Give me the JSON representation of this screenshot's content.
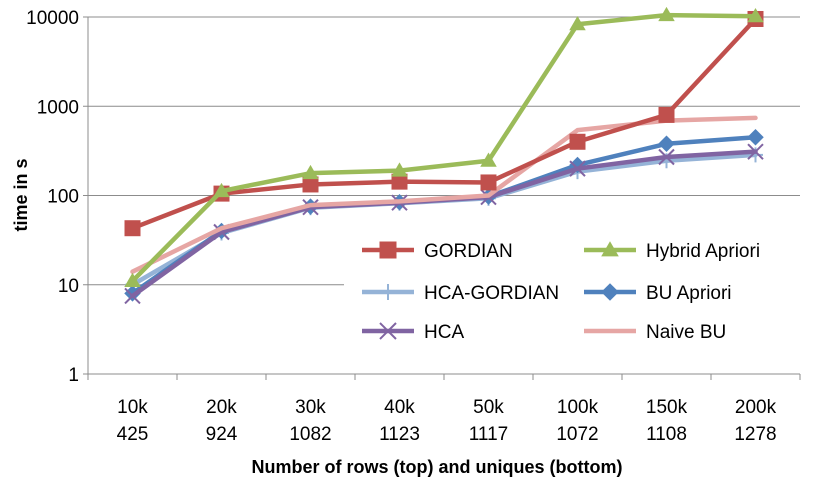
{
  "chart_data": {
    "type": "line",
    "yscale": "log",
    "ylim": [
      1,
      10000
    ],
    "yticks": [
      "1",
      "10",
      "100",
      "1000",
      "10000"
    ],
    "ytick_values": [
      1,
      10,
      100,
      1000,
      10000
    ],
    "ylabel": "time in s",
    "xlabel": "Number of rows (top) and uniques (bottom)",
    "categories_top": [
      "10k",
      "20k",
      "30k",
      "40k",
      "50k",
      "100k",
      "150k",
      "200k"
    ],
    "categories_bottom": [
      "425",
      "924",
      "1082",
      "1123",
      "1117",
      "1072",
      "1108",
      "1278"
    ],
    "grid": "horizontal",
    "legend_position": "bottom-right inside",
    "series": [
      {
        "name": "GORDIAN",
        "color": "#c0504d",
        "marker": "square",
        "values": [
          43,
          105,
          133,
          143,
          140,
          400,
          800,
          9500
        ]
      },
      {
        "name": "Hybrid Apriori",
        "color": "#9bbb59",
        "marker": "triangle",
        "values": [
          11,
          112,
          178,
          190,
          245,
          8300,
          10500,
          10200
        ]
      },
      {
        "name": "HCA-GORDIAN",
        "color": "#95b3d7",
        "marker": "plus",
        "values": [
          10,
          38,
          73,
          82,
          93,
          185,
          245,
          285
        ]
      },
      {
        "name": "BU Apriori",
        "color": "#4f81bd",
        "marker": "diamond",
        "values": [
          8,
          40,
          75,
          84,
          97,
          220,
          380,
          450
        ]
      },
      {
        "name": "HCA",
        "color": "#8064a2",
        "marker": "x",
        "values": [
          7.5,
          39,
          74,
          83,
          96,
          200,
          270,
          310
        ]
      },
      {
        "name": "Naive BU",
        "color": "#e6a6a4",
        "marker": "none",
        "values": [
          14,
          43,
          78,
          86,
          100,
          540,
          690,
          740
        ]
      }
    ]
  }
}
